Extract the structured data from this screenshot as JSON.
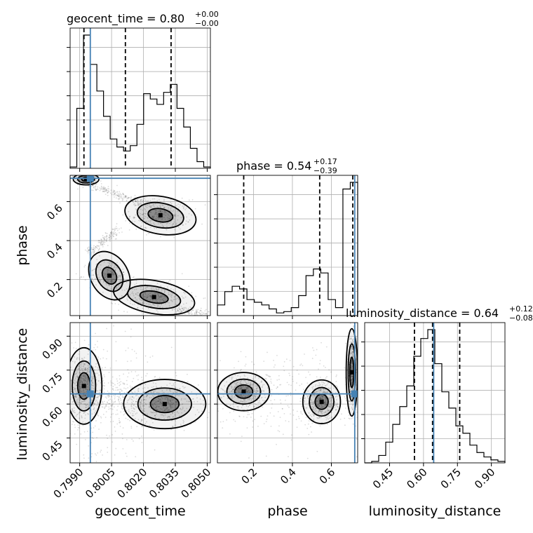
{
  "chart_data": {
    "type": "corner",
    "parameters": [
      "geocent_time",
      "phase",
      "luminosity_distance"
    ],
    "truths": {
      "geocent_time": 0.7995,
      "phase": 0.72,
      "luminosity_distance": 0.645
    },
    "titles": {
      "geocent_time": {
        "base": "geocent_time = 0.80",
        "upper": "+0.00",
        "lower": "−0.00"
      },
      "phase": {
        "base": "phase = 0.54",
        "upper": "+0.17",
        "lower": "−0.39"
      },
      "luminosity_distance": {
        "base": "luminosity_distance = 0.64",
        "upper": "+0.12",
        "lower": "−0.08"
      }
    },
    "axis_labels": {
      "geocent_time": "geocent_time",
      "phase": "phase",
      "luminosity_distance": "luminosity_distance"
    },
    "ranges": {
      "geocent_time": [
        0.79855,
        0.80515
      ],
      "phase": [
        0.015,
        0.735
      ],
      "luminosity_distance": [
        0.34,
        0.96
      ]
    },
    "ticks": {
      "geocent_time": [
        0.799,
        0.8005,
        0.802,
        0.8035,
        0.805
      ],
      "phase": [
        0.2,
        0.4,
        0.6
      ],
      "luminosity_distance": [
        0.45,
        0.6,
        0.75,
        0.9
      ]
    },
    "tick_labels": {
      "geocent_time": [
        "0.7990",
        "0.8005",
        "0.8020",
        "0.8035",
        "0.8050"
      ],
      "phase": [
        "0.2",
        "0.4",
        "0.6"
      ],
      "luminosity_distance": [
        "0.45",
        "0.60",
        "0.75",
        "0.90"
      ]
    },
    "quantiles": {
      "geocent_time": [
        0.7992,
        0.80115,
        0.8033
      ],
      "phase": [
        0.15,
        0.54,
        0.71
      ],
      "luminosity_distance": [
        0.56,
        0.64,
        0.76
      ]
    },
    "hist_geocent_time": {
      "x_min": 0.79855,
      "x_max": 0.80515,
      "heights": [
        0.01,
        0.45,
        1.0,
        0.78,
        0.58,
        0.39,
        0.22,
        0.16,
        0.13,
        0.17,
        0.33,
        0.56,
        0.52,
        0.48,
        0.57,
        0.63,
        0.45,
        0.31,
        0.15,
        0.05,
        0.01
      ]
    },
    "hist_phase": {
      "x_min": 0.015,
      "x_max": 0.735,
      "heights": [
        0.08,
        0.18,
        0.22,
        0.2,
        0.12,
        0.1,
        0.08,
        0.05,
        0.02,
        0.03,
        0.06,
        0.15,
        0.3,
        0.35,
        0.32,
        0.12,
        0.06,
        0.95,
        1.0
      ]
    },
    "hist_luminosity_distance": {
      "x_min": 0.34,
      "x_max": 0.96,
      "heights": [
        0.0,
        0.01,
        0.05,
        0.14,
        0.26,
        0.38,
        0.52,
        0.72,
        0.84,
        0.9,
        0.67,
        0.48,
        0.37,
        0.25,
        0.2,
        0.12,
        0.07,
        0.04,
        0.02,
        0.01
      ]
    },
    "grid": true
  }
}
